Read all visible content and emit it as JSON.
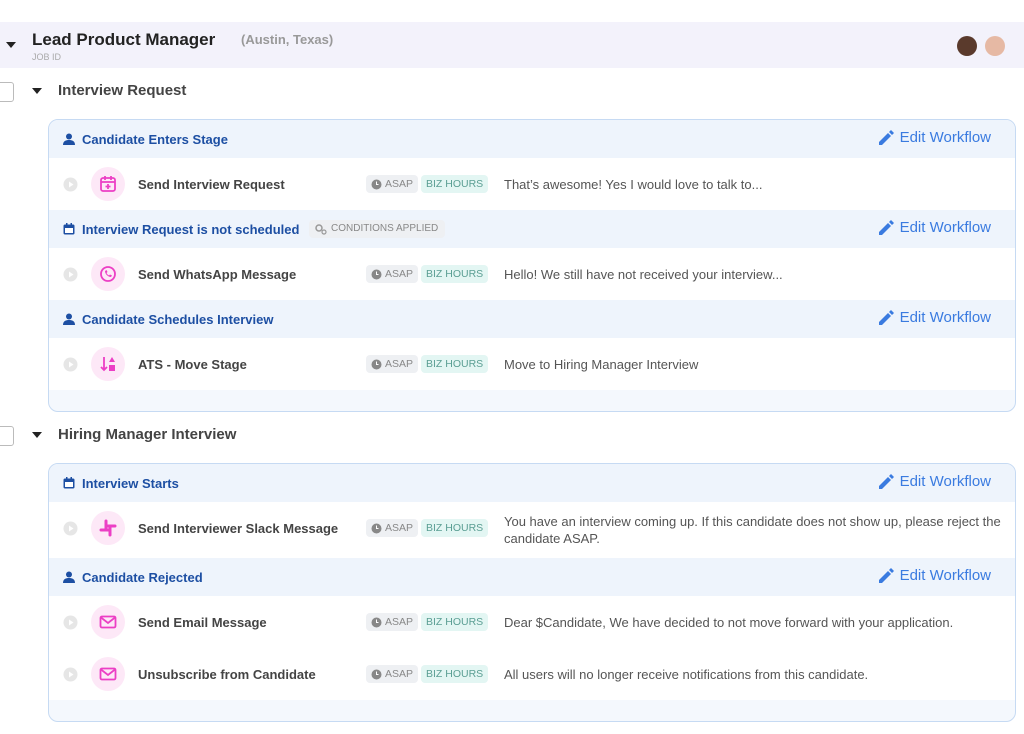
{
  "header": {
    "title": "Lead Product Manager",
    "location": "(Austin, Texas)",
    "job_id_label": "JOB ID"
  },
  "stages": [
    {
      "name": "Interview Request",
      "triggers": [
        {
          "label": "Candidate Enters Stage",
          "edit": "Edit Workflow",
          "actions": [
            {
              "name": "Send Interview Request",
              "tags": [
                "ASAP",
                "BIZ HOURS"
              ],
              "message": "That’s awesome! Yes I would love to talk to..."
            }
          ]
        },
        {
          "label": "Interview Request is not scheduled",
          "badge": "CONDITIONS APPLIED",
          "edit": "Edit Workflow",
          "actions": [
            {
              "name": "Send WhatsApp Message",
              "tags": [
                "ASAP",
                "BIZ HOURS"
              ],
              "message": "Hello! We still have not received your interview..."
            }
          ]
        },
        {
          "label": "Candidate Schedules Interview",
          "edit": "Edit Workflow",
          "actions": [
            {
              "name": "ATS - Move Stage",
              "tags": [
                "ASAP",
                "BIZ HOURS"
              ],
              "message": "Move to Hiring Manager Interview"
            }
          ]
        }
      ]
    },
    {
      "name": "Hiring Manager Interview",
      "triggers": [
        {
          "label": "Interview Starts",
          "edit": "Edit Workflow",
          "actions": [
            {
              "name": "Send Interviewer Slack Message",
              "tags": [
                "ASAP",
                "BIZ HOURS"
              ],
              "message": "You have an interview coming up. If this candidate does not show up, please reject the candidate ASAP."
            }
          ]
        },
        {
          "label": "Candidate Rejected",
          "edit": "Edit Workflow",
          "actions": [
            {
              "name": "Send Email Message",
              "tags": [
                "ASAP",
                "BIZ HOURS"
              ],
              "message": "Dear $Candidate, We have decided to not move forward with your application."
            },
            {
              "name": "Unsubscribe from Candidate",
              "tags": [
                "ASAP",
                "BIZ HOURS"
              ],
              "message": "All users will no longer receive notifications from this candidate."
            }
          ]
        }
      ]
    }
  ]
}
